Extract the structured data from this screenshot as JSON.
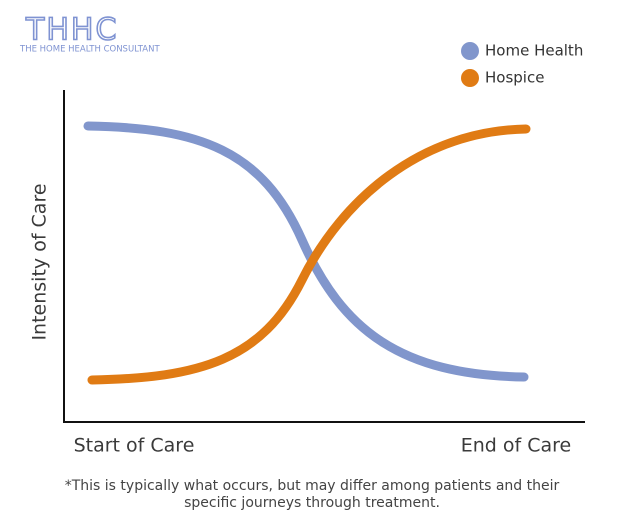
{
  "header": {
    "logo": "THHC",
    "logo_subtitle": "THE HOME HEALTH CONSULTANT"
  },
  "legend": [
    {
      "label": "Home Health",
      "color": "#8196cc"
    },
    {
      "label": "Hospice",
      "color": "#e07b14"
    }
  ],
  "axes": {
    "y_label": "Intensity of Care",
    "x_start": "Start of Care",
    "x_end": "End of Care"
  },
  "footnote": [
    "*This is typically what occurs, but may differ among patients and their",
    "specific journeys through treatment."
  ]
}
